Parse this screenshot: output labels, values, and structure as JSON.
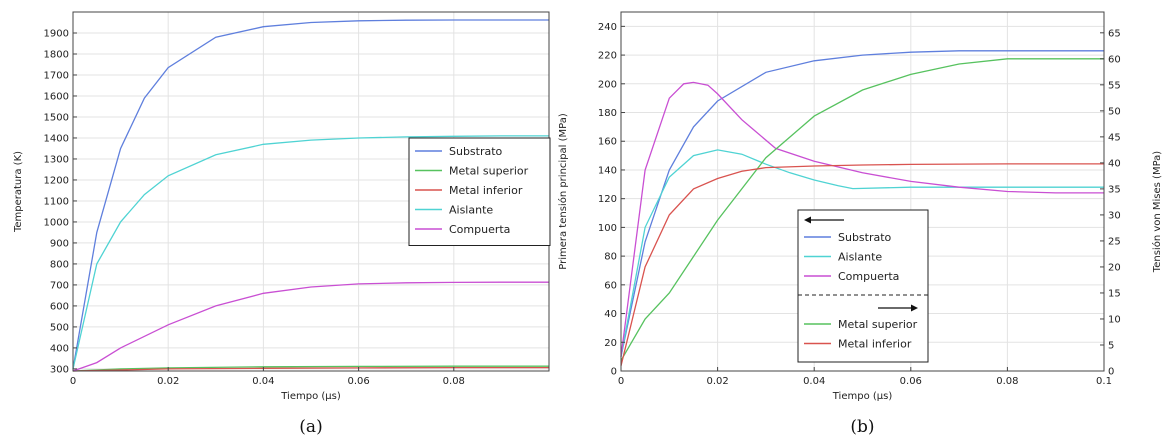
{
  "chart_data": [
    {
      "type": "line",
      "caption": "(a)",
      "xlabel": "Tiempo (µs)",
      "ylabel": "Temperatura (K)",
      "xlim": [
        0,
        0.1
      ],
      "ylim": [
        290,
        2000
      ],
      "xticks": [
        "0",
        "0.02",
        "0.04",
        "0.06",
        "0.08"
      ],
      "yticks": [
        "300",
        "400",
        "500",
        "600",
        "700",
        "800",
        "900",
        "1000",
        "1100",
        "1200",
        "1300",
        "1400",
        "1500",
        "1600",
        "1700",
        "1800",
        "1900"
      ],
      "grid": true,
      "legend_position": "right",
      "series": [
        {
          "name": "Substrato",
          "color": "#5f7fdd",
          "x": [
            0,
            0.005,
            0.01,
            0.015,
            0.02,
            0.03,
            0.04,
            0.05,
            0.06,
            0.07,
            0.08,
            0.09,
            0.1
          ],
          "y": [
            300,
            950,
            1350,
            1590,
            1735,
            1880,
            1930,
            1950,
            1958,
            1961,
            1962,
            1962,
            1962
          ]
        },
        {
          "name": "Metal superior",
          "color": "#57c25f",
          "x": [
            0,
            0.01,
            0.02,
            0.04,
            0.06,
            0.08,
            0.1
          ],
          "y": [
            290,
            300,
            305,
            310,
            312,
            313,
            313
          ]
        },
        {
          "name": "Metal inferior",
          "color": "#d9534f",
          "x": [
            0,
            0.01,
            0.02,
            0.04,
            0.06,
            0.08,
            0.1
          ],
          "y": [
            290,
            295,
            300,
            303,
            305,
            306,
            306
          ]
        },
        {
          "name": "Aislante",
          "color": "#4fd3d3",
          "x": [
            0,
            0.005,
            0.01,
            0.015,
            0.02,
            0.03,
            0.04,
            0.05,
            0.06,
            0.07,
            0.08,
            0.09,
            0.1
          ],
          "y": [
            300,
            800,
            1000,
            1130,
            1220,
            1320,
            1370,
            1390,
            1400,
            1405,
            1408,
            1410,
            1410
          ]
        },
        {
          "name": "Compuerta",
          "color": "#c94fd3",
          "x": [
            0,
            0.005,
            0.01,
            0.02,
            0.03,
            0.04,
            0.05,
            0.06,
            0.07,
            0.08,
            0.09,
            0.1
          ],
          "y": [
            290,
            330,
            400,
            510,
            600,
            660,
            690,
            705,
            710,
            712,
            713,
            713
          ]
        }
      ],
      "legend": [
        "Substrato",
        "Metal superior",
        "Metal inferior",
        "Aislante",
        "Compuerta"
      ]
    },
    {
      "type": "line",
      "caption": "(b)",
      "xlabel": "Tiempo (µs)",
      "ylabel": "Primera tensión principal (MPa)",
      "ylabel_right": "Tensión von Mises (MPa)",
      "xlim": [
        0,
        0.1
      ],
      "ylim": [
        0,
        250
      ],
      "ylim_right": [
        0,
        69
      ],
      "xticks": [
        "0",
        "0.02",
        "0.04",
        "0.06",
        "0.08",
        "0.1"
      ],
      "yticks": [
        "0",
        "20",
        "40",
        "60",
        "80",
        "100",
        "120",
        "140",
        "160",
        "180",
        "200",
        "220",
        "240"
      ],
      "yticks_right": [
        "0",
        "5",
        "10",
        "15",
        "20",
        "25",
        "30",
        "35",
        "40",
        "45",
        "50",
        "55",
        "60",
        "65"
      ],
      "grid": true,
      "legend_position": "center",
      "series": [
        {
          "name": "Substrato",
          "axis": "left",
          "color": "#5f7fdd",
          "x": [
            0,
            0.005,
            0.01,
            0.015,
            0.02,
            0.03,
            0.04,
            0.05,
            0.06,
            0.07,
            0.08,
            0.09,
            0.1
          ],
          "y": [
            10,
            90,
            140,
            170,
            188,
            208,
            216,
            220,
            222,
            223,
            223,
            223,
            223
          ]
        },
        {
          "name": "Aislante",
          "axis": "left",
          "color": "#4fd3d3",
          "x": [
            0,
            0.005,
            0.01,
            0.015,
            0.02,
            0.025,
            0.03,
            0.035,
            0.04,
            0.045,
            0.048,
            0.06,
            0.08,
            0.1
          ],
          "y": [
            10,
            100,
            135,
            150,
            154,
            151,
            144,
            138,
            133,
            129,
            127,
            128,
            128,
            128
          ]
        },
        {
          "name": "Compuerta",
          "axis": "left",
          "color": "#c94fd3",
          "x": [
            0,
            0.005,
            0.01,
            0.013,
            0.015,
            0.018,
            0.02,
            0.025,
            0.032,
            0.04,
            0.05,
            0.06,
            0.07,
            0.08,
            0.09,
            0.1
          ],
          "y": [
            10,
            140,
            190,
            200,
            201,
            199,
            193,
            175,
            155,
            146,
            138,
            132,
            128,
            125,
            124,
            124
          ]
        },
        {
          "name": "Metal superior",
          "axis": "right",
          "color": "#57c25f",
          "x": [
            0,
            0.005,
            0.01,
            0.015,
            0.02,
            0.03,
            0.04,
            0.05,
            0.06,
            0.07,
            0.08,
            0.09,
            0.1
          ],
          "y": [
            2,
            10,
            15,
            22,
            29,
            41,
            49,
            54,
            57,
            59,
            60,
            60,
            60
          ]
        },
        {
          "name": "Metal inferior",
          "axis": "right",
          "color": "#d9534f",
          "x": [
            0,
            0.005,
            0.01,
            0.015,
            0.02,
            0.025,
            0.03,
            0.04,
            0.05,
            0.06,
            0.08,
            0.1
          ],
          "y": [
            1,
            20,
            30,
            35,
            37,
            38.4,
            39.1,
            39.4,
            39.6,
            39.7,
            39.8,
            39.8
          ]
        }
      ],
      "legend_left": [
        "Substrato",
        "Aislante",
        "Compuerta"
      ],
      "legend_right": [
        "Metal superior",
        "Metal inferior"
      ]
    }
  ]
}
